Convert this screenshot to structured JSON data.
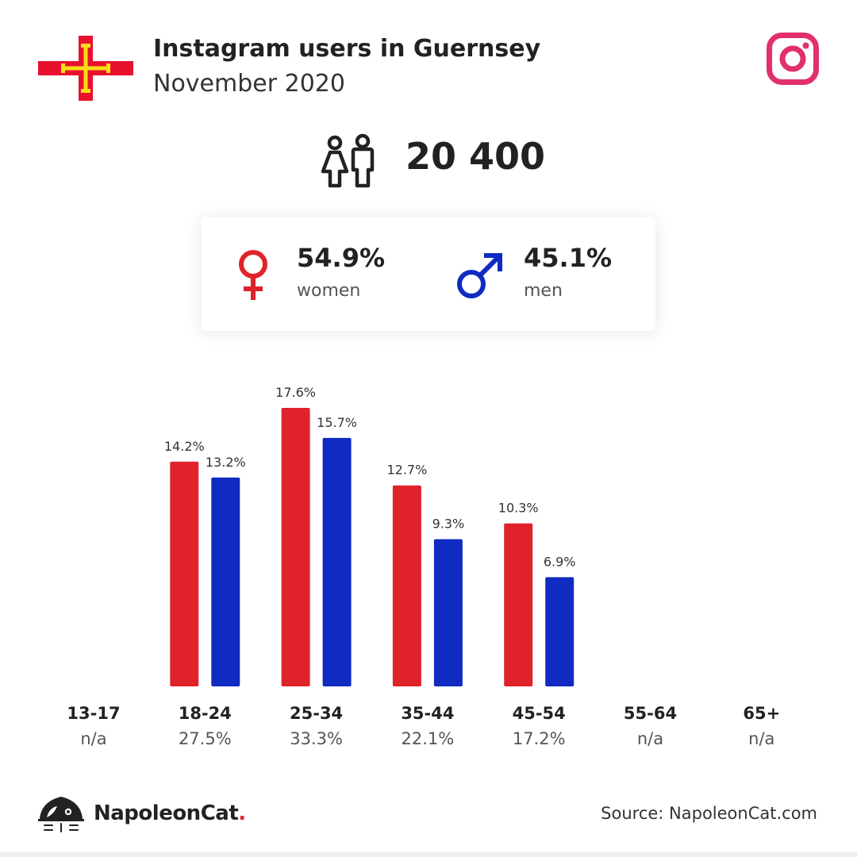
{
  "header": {
    "title": "Instagram users in Guernsey",
    "subtitle": "November 2020"
  },
  "summary": {
    "total_users": "20 400"
  },
  "gender": {
    "women_pct": "54.9%",
    "women_label": "women",
    "men_pct": "45.1%",
    "men_label": "men"
  },
  "colors": {
    "women": "#e0222a",
    "men": "#0f2bc2",
    "instagram": "#e1306c",
    "flag_red": "#e8112d",
    "flag_gold": "#f9dd16"
  },
  "icons": {
    "flag": "guernsey-flag-icon",
    "instagram": "instagram-icon",
    "people": "people-icon",
    "female": "female-symbol-icon",
    "male": "male-symbol-icon",
    "logo": "napoleoncat-logo-icon"
  },
  "chart_data": {
    "type": "bar",
    "categories": [
      "13-17",
      "18-24",
      "25-34",
      "35-44",
      "45-54",
      "55-64",
      "65+"
    ],
    "category_totals": [
      "n/a",
      "27.5%",
      "33.3%",
      "22.1%",
      "17.2%",
      "n/a",
      "n/a"
    ],
    "series": [
      {
        "key": "women",
        "values": [
          null,
          14.2,
          17.6,
          12.7,
          10.3,
          null,
          null
        ],
        "labels": [
          "",
          "14.2%",
          "17.6%",
          "12.7%",
          "10.3%",
          "",
          ""
        ]
      },
      {
        "key": "men",
        "values": [
          null,
          13.2,
          15.7,
          9.3,
          6.9,
          null,
          null
        ],
        "labels": [
          "",
          "13.2%",
          "15.7%",
          "9.3%",
          "6.9%",
          "",
          ""
        ]
      }
    ],
    "ylim": [
      0,
      17.6
    ],
    "grid": false
  },
  "footer": {
    "brand": "NapoleonCat",
    "brand_dot": ".",
    "source": "Source: NapoleonCat.com"
  }
}
